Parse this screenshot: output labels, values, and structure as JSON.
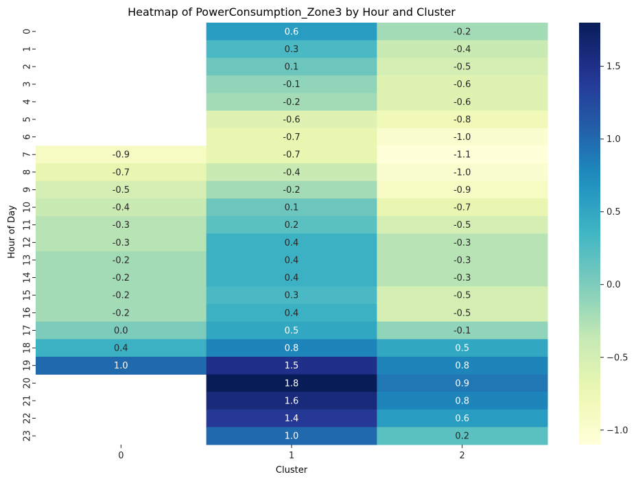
{
  "chart_data": {
    "type": "heatmap",
    "title": "Heatmap of PowerConsumption_Zone3 by Hour and Cluster",
    "xlabel": "Cluster",
    "ylabel": "Hour of Day",
    "x_categories": [
      "0",
      "1",
      "2"
    ],
    "y_categories": [
      "0",
      "1",
      "2",
      "3",
      "4",
      "5",
      "6",
      "7",
      "8",
      "9",
      "10",
      "11",
      "12",
      "13",
      "14",
      "15",
      "16",
      "17",
      "18",
      "19",
      "20",
      "21",
      "22",
      "23"
    ],
    "values": [
      [
        null,
        0.6,
        -0.2
      ],
      [
        null,
        0.3,
        -0.4
      ],
      [
        null,
        0.1,
        -0.5
      ],
      [
        null,
        -0.1,
        -0.6
      ],
      [
        null,
        -0.2,
        -0.6
      ],
      [
        null,
        -0.6,
        -0.8
      ],
      [
        null,
        -0.7,
        -1.0
      ],
      [
        -0.9,
        -0.7,
        -1.1
      ],
      [
        -0.7,
        -0.4,
        -1.0
      ],
      [
        -0.5,
        -0.2,
        -0.9
      ],
      [
        -0.4,
        0.1,
        -0.7
      ],
      [
        -0.3,
        0.2,
        -0.5
      ],
      [
        -0.3,
        0.4,
        -0.3
      ],
      [
        -0.2,
        0.4,
        -0.3
      ],
      [
        -0.2,
        0.4,
        -0.3
      ],
      [
        -0.2,
        0.3,
        -0.5
      ],
      [
        -0.2,
        0.4,
        -0.5
      ],
      [
        0.0,
        0.5,
        -0.1
      ],
      [
        0.4,
        0.8,
        0.5
      ],
      [
        1.0,
        1.5,
        0.8
      ],
      [
        null,
        1.8,
        0.9
      ],
      [
        null,
        1.6,
        0.8
      ],
      [
        null,
        1.4,
        0.6
      ],
      [
        null,
        1.0,
        0.2
      ]
    ],
    "colorbar": {
      "colormap": "YlGnBu",
      "min": -1.1,
      "max": 1.8,
      "ticks": [
        1.5,
        1.0,
        0.5,
        0.0,
        -0.5,
        -1.0
      ],
      "tick_labels": [
        "1.5",
        "1.0",
        "0.5",
        "0.0",
        "−0.5",
        "−1.0"
      ]
    },
    "grid": false
  }
}
